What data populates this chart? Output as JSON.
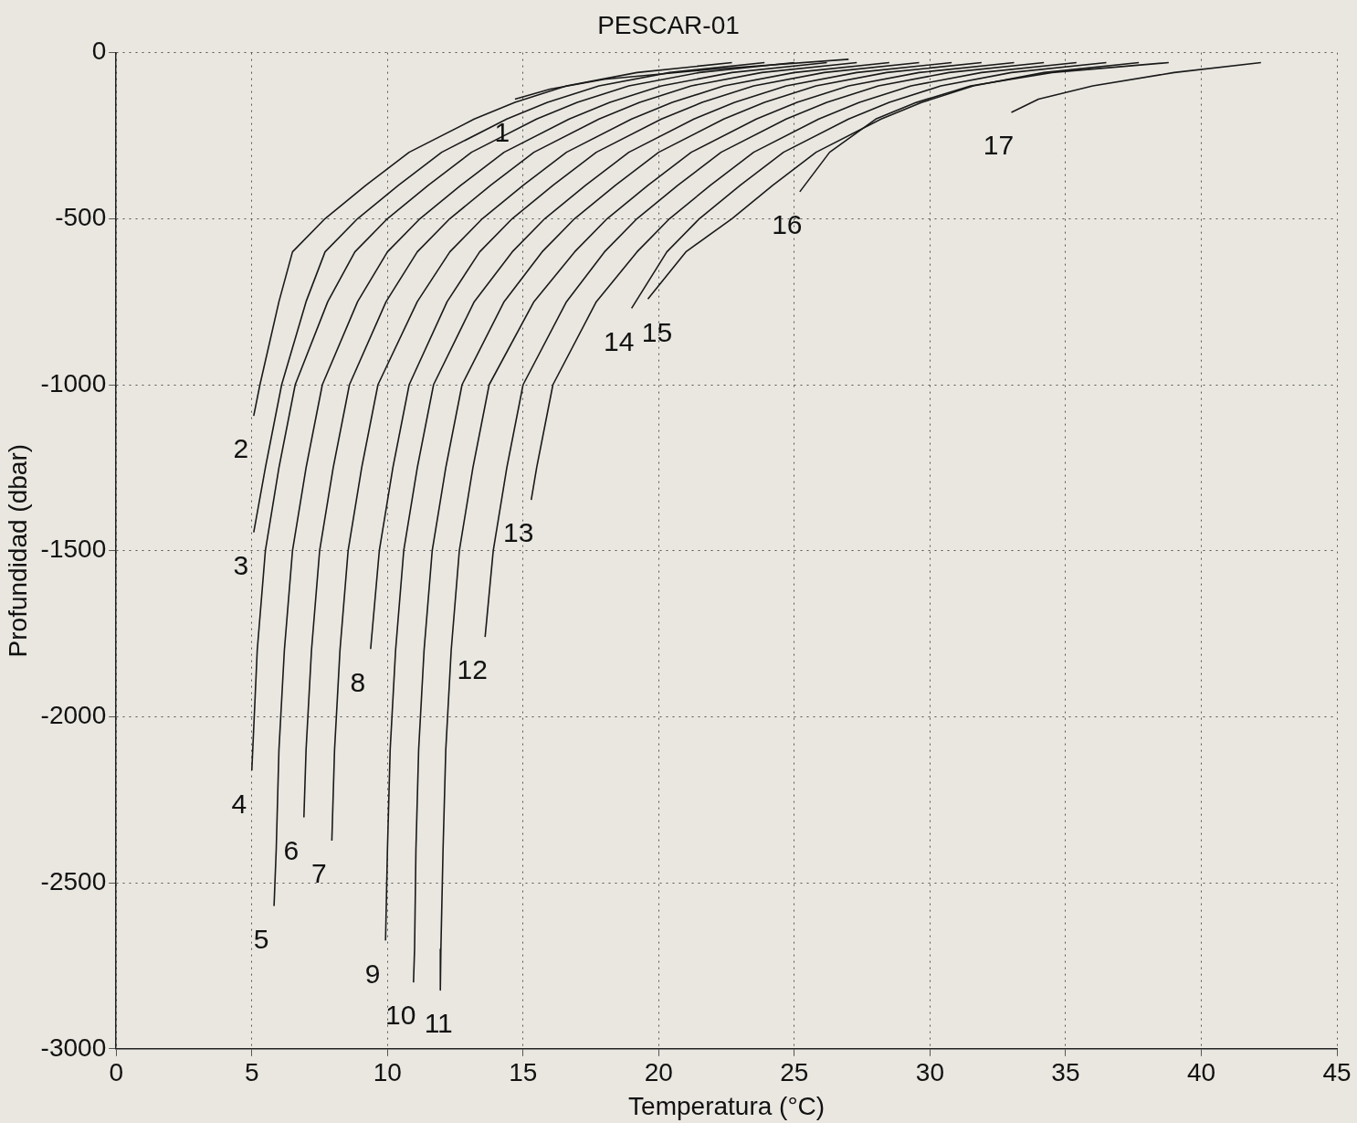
{
  "chart_data": {
    "type": "line",
    "title": "PESCAR-01",
    "xlabel": "Temperatura (°C)",
    "ylabel": "Profundidad (dbar)",
    "xlim": [
      0,
      45
    ],
    "xticks": [
      0,
      5,
      10,
      15,
      20,
      25,
      30,
      35,
      40,
      45
    ],
    "ylim": [
      -3000,
      0
    ],
    "yticks": [
      -3000,
      -2500,
      -2000,
      -1500,
      -1000,
      -500,
      0
    ],
    "grid": true,
    "legend": false,
    "marker": "none",
    "line_style": "solid",
    "series": [
      {
        "name": "1",
        "color": "#1a1a1a",
        "x": [
          27,
          22,
          18,
          16,
          14.7
        ],
        "values": [
          -20,
          -50,
          -80,
          -110,
          -140
        ]
      },
      {
        "name": "2",
        "color": "#1a1a1a",
        "x": [
          22.7,
          19.2,
          16.6,
          14.7,
          13.2,
          10.8,
          9.2,
          7.7,
          6.5,
          6.0,
          5.3,
          5.07
        ],
        "values": [
          -30,
          -60,
          -100,
          -150,
          -200,
          -300,
          -400,
          -500,
          -600,
          -750,
          -1000,
          -1094
        ]
      },
      {
        "name": "3",
        "color": "#1a1a1a",
        "x": [
          23.9,
          20.4,
          17.8,
          15.9,
          14.4,
          12.0,
          10.4,
          8.9,
          7.7,
          7.0,
          6.1,
          5.5,
          5.07
        ],
        "values": [
          -30,
          -60,
          -100,
          -150,
          -200,
          -300,
          -400,
          -500,
          -600,
          -750,
          -1000,
          -1250,
          -1445
        ]
      },
      {
        "name": "4",
        "color": "#1a1a1a",
        "x": [
          25,
          21.5,
          18.9,
          17,
          15.5,
          13.1,
          11.5,
          10.0,
          8.8,
          7.8,
          6.6,
          6.0,
          5.5,
          5.2,
          5.0
        ],
        "values": [
          -30,
          -60,
          -100,
          -150,
          -200,
          -300,
          -400,
          -500,
          -600,
          -750,
          -1000,
          -1250,
          -1500,
          -1800,
          -2162
        ]
      },
      {
        "name": "5",
        "color": "#1a1a1a",
        "x": [
          26.2,
          22.7,
          20.1,
          18.2,
          16.7,
          14.3,
          12.7,
          11.2,
          10.0,
          8.9,
          7.6,
          7.0,
          6.5,
          6.2,
          6.0,
          5.9,
          5.82
        ],
        "values": [
          -30,
          -60,
          -100,
          -150,
          -200,
          -300,
          -400,
          -500,
          -600,
          -750,
          -1000,
          -1250,
          -1500,
          -1800,
          -2100,
          -2400,
          -2570
        ]
      },
      {
        "name": "6",
        "color": "#1a1a1a",
        "x": [
          27.3,
          23.8,
          21.2,
          19.3,
          17.8,
          15.4,
          13.8,
          12.3,
          11.1,
          9.95,
          8.6,
          8.0,
          7.5,
          7.2,
          7.0,
          6.92
        ],
        "values": [
          -30,
          -60,
          -100,
          -150,
          -200,
          -300,
          -400,
          -500,
          -600,
          -750,
          -1000,
          -1250,
          -1500,
          -1800,
          -2100,
          -2303
        ]
      },
      {
        "name": "7",
        "color": "#1a1a1a",
        "x": [
          28.5,
          25.0,
          22.4,
          20.5,
          19.0,
          16.6,
          15.0,
          13.5,
          12.3,
          11.1,
          9.65,
          9.05,
          8.55,
          8.25,
          8.05,
          7.95
        ],
        "values": [
          -30,
          -60,
          -100,
          -150,
          -200,
          -300,
          -400,
          -500,
          -600,
          -750,
          -1000,
          -1250,
          -1500,
          -1800,
          -2100,
          -2373
        ]
      },
      {
        "name": "8",
        "color": "#1a1a1a",
        "x": [
          29.6,
          26.1,
          23.5,
          21.6,
          20.1,
          17.7,
          16.1,
          14.6,
          13.4,
          12.2,
          10.8,
          10.2,
          9.7,
          9.38
        ],
        "values": [
          -30,
          -60,
          -100,
          -150,
          -200,
          -300,
          -400,
          -500,
          -600,
          -750,
          -1000,
          -1250,
          -1500,
          -1796
        ]
      },
      {
        "name": "9",
        "color": "#1a1a1a",
        "x": [
          30.8,
          27.3,
          24.7,
          22.8,
          21.3,
          18.9,
          17.3,
          15.8,
          14.6,
          13.2,
          11.7,
          11.1,
          10.6,
          10.3,
          10.1,
          10.0,
          9.93
        ],
        "values": [
          -30,
          -60,
          -100,
          -150,
          -200,
          -300,
          -400,
          -500,
          -600,
          -750,
          -1000,
          -1250,
          -1500,
          -1800,
          -2100,
          -2400,
          -2674
        ]
      },
      {
        "name": "10",
        "color": "#1a1a1a",
        "x": [
          31.9,
          28.4,
          25.8,
          23.9,
          22.4,
          20.0,
          18.4,
          16.9,
          15.7,
          14.3,
          12.75,
          12.15,
          11.65,
          11.35,
          11.15,
          11.05,
          11.0,
          10.96
        ],
        "values": [
          -30,
          -60,
          -100,
          -150,
          -200,
          -300,
          -400,
          -500,
          -600,
          -750,
          -1000,
          -1250,
          -1500,
          -1800,
          -2100,
          -2400,
          -2700,
          -2800
        ]
      },
      {
        "name": "11",
        "color": "#1a1a1a",
        "x": [
          33.1,
          29.6,
          27.0,
          25.1,
          23.6,
          21.2,
          19.6,
          18.1,
          16.9,
          15.4,
          13.75,
          13.15,
          12.65,
          12.35,
          12.15,
          12.05,
          11.97,
          11.95
        ],
        "values": [
          -30,
          -60,
          -100,
          -150,
          -200,
          -300,
          -400,
          -500,
          -600,
          -750,
          -1000,
          -1250,
          -1500,
          -1800,
          -2100,
          -2400,
          -2700,
          -2823
        ]
      },
      {
        "name": "12",
        "color": "#1a1a1a",
        "x": [
          34.2,
          30.7,
          28.1,
          26.2,
          24.7,
          22.3,
          20.7,
          19.2,
          18.0,
          16.6,
          15.0,
          14.4,
          13.9,
          13.6
        ],
        "values": [
          -30,
          -60,
          -100,
          -150,
          -200,
          -300,
          -400,
          -500,
          -600,
          -750,
          -1000,
          -1250,
          -1500,
          -1760
        ]
      },
      {
        "name": "13",
        "color": "#1a1a1a",
        "x": [
          35.4,
          31.9,
          29.3,
          27.4,
          25.9,
          23.5,
          21.9,
          20.4,
          19.2,
          17.7,
          16.1,
          15.5,
          15.3
        ],
        "values": [
          -30,
          -60,
          -100,
          -150,
          -200,
          -300,
          -400,
          -500,
          -600,
          -750,
          -1000,
          -1250,
          -1347
        ]
      },
      {
        "name": "14",
        "color": "#1a1a1a",
        "x": [
          36.5,
          33.0,
          30.4,
          28.5,
          27.0,
          24.6,
          23.0,
          21.5,
          20.3,
          19.0
        ],
        "values": [
          -30,
          -60,
          -100,
          -150,
          -200,
          -300,
          -400,
          -500,
          -600,
          -770
        ]
      },
      {
        "name": "15",
        "color": "#1a1a1a",
        "x": [
          37.7,
          34.2,
          31.6,
          29.7,
          28.2,
          25.8,
          24.2,
          22.7,
          21.0,
          19.6
        ],
        "values": [
          -30,
          -60,
          -100,
          -150,
          -200,
          -300,
          -400,
          -500,
          -600,
          -742
        ]
      },
      {
        "name": "16",
        "color": "#1a1a1a",
        "x": [
          38.8,
          34.5,
          31.5,
          29.5,
          28.0,
          26.3,
          25.2
        ],
        "values": [
          -30,
          -60,
          -100,
          -150,
          -200,
          -300,
          -419
        ]
      },
      {
        "name": "17",
        "color": "#1a1a1a",
        "x": [
          42.2,
          39,
          36,
          34,
          33
        ],
        "values": [
          -30,
          -60,
          -100,
          -140,
          -180
        ]
      }
    ]
  }
}
